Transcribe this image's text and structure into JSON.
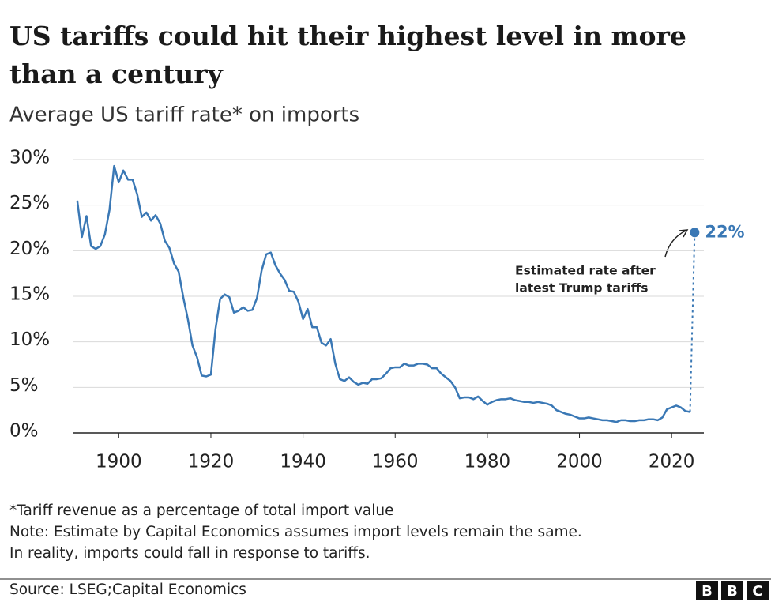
{
  "chart_data": {
    "type": "line",
    "title": [
      "US tariffs could hit their highest level in more",
      "than a century"
    ],
    "subtitle": "Average US tariff rate* on imports",
    "color": "#3a78b5",
    "x": [
      1891,
      1892,
      1893,
      1894,
      1895,
      1896,
      1897,
      1898,
      1899,
      1900,
      1901,
      1902,
      1903,
      1904,
      1905,
      1906,
      1907,
      1908,
      1909,
      1910,
      1911,
      1912,
      1913,
      1914,
      1915,
      1916,
      1917,
      1918,
      1919,
      1920,
      1921,
      1922,
      1923,
      1924,
      1925,
      1926,
      1927,
      1928,
      1929,
      1930,
      1931,
      1932,
      1933,
      1934,
      1935,
      1936,
      1937,
      1938,
      1939,
      1940,
      1941,
      1942,
      1943,
      1944,
      1945,
      1946,
      1947,
      1948,
      1949,
      1950,
      1951,
      1952,
      1953,
      1954,
      1955,
      1956,
      1957,
      1958,
      1959,
      1960,
      1961,
      1962,
      1963,
      1964,
      1965,
      1966,
      1967,
      1968,
      1969,
      1970,
      1971,
      1972,
      1973,
      1974,
      1975,
      1976,
      1977,
      1978,
      1979,
      1980,
      1981,
      1982,
      1983,
      1984,
      1985,
      1986,
      1987,
      1988,
      1989,
      1990,
      1991,
      1992,
      1993,
      1994,
      1995,
      1996,
      1997,
      1998,
      1999,
      2000,
      2001,
      2002,
      2003,
      2004,
      2005,
      2006,
      2007,
      2008,
      2009,
      2010,
      2011,
      2012,
      2013,
      2014,
      2015,
      2016,
      2017,
      2018,
      2019,
      2020,
      2021,
      2022,
      2023,
      2024
    ],
    "values": [
      25.5,
      21.5,
      23.8,
      20.5,
      20.2,
      20.5,
      21.8,
      24.5,
      29.3,
      27.5,
      28.8,
      27.8,
      27.8,
      26.2,
      23.7,
      24.2,
      23.3,
      23.9,
      23.0,
      21.1,
      20.3,
      18.6,
      17.7,
      14.9,
      12.5,
      9.6,
      8.3,
      6.3,
      6.2,
      6.4,
      11.4,
      14.7,
      15.2,
      14.9,
      13.2,
      13.4,
      13.8,
      13.4,
      13.5,
      14.8,
      17.8,
      19.6,
      19.8,
      18.4,
      17.5,
      16.8,
      15.6,
      15.5,
      14.4,
      12.5,
      13.6,
      11.6,
      11.6,
      9.9,
      9.6,
      10.3,
      7.6,
      5.9,
      5.7,
      6.1,
      5.6,
      5.3,
      5.5,
      5.4,
      5.9,
      5.9,
      6.0,
      6.5,
      7.1,
      7.2,
      7.2,
      7.6,
      7.4,
      7.4,
      7.6,
      7.6,
      7.5,
      7.1,
      7.1,
      6.5,
      6.1,
      5.7,
      5.0,
      3.8,
      3.9,
      3.9,
      3.7,
      4.0,
      3.5,
      3.1,
      3.4,
      3.6,
      3.7,
      3.7,
      3.8,
      3.6,
      3.5,
      3.4,
      3.4,
      3.3,
      3.4,
      3.3,
      3.2,
      3.0,
      2.5,
      2.3,
      2.1,
      2.0,
      1.8,
      1.6,
      1.6,
      1.7,
      1.6,
      1.5,
      1.4,
      1.4,
      1.3,
      1.2,
      1.4,
      1.4,
      1.3,
      1.3,
      1.4,
      1.4,
      1.5,
      1.5,
      1.4,
      1.7,
      2.6,
      2.8,
      3.0,
      2.8,
      2.4,
      2.3
    ],
    "estimate": {
      "x": 2025,
      "value": 22,
      "label": "22%",
      "annotation": [
        "Estimated rate after",
        "latest Trump tariffs"
      ]
    },
    "xlim": [
      1890,
      2027
    ],
    "xticks": [
      1900,
      1920,
      1940,
      1960,
      1980,
      2000,
      2020
    ],
    "ylim": [
      0,
      30
    ],
    "yticks": [
      {
        "value": 0,
        "label": "0%"
      },
      {
        "value": 5,
        "label": "5%"
      },
      {
        "value": 10,
        "label": "10%"
      },
      {
        "value": 15,
        "label": "15%"
      },
      {
        "value": 20,
        "label": "20%"
      },
      {
        "value": 25,
        "label": "25%"
      },
      {
        "value": 30,
        "label": "30%"
      }
    ],
    "grid": true,
    "notes": [
      "*Tariff revenue as a percentage of total import value",
      "Note: Estimate by Capital Economics assumes import levels remain the same.",
      "In reality, imports could fall in response to tariffs."
    ],
    "source": "Source: LSEG;Capital Economics",
    "logo": [
      "B",
      "B",
      "C"
    ]
  }
}
